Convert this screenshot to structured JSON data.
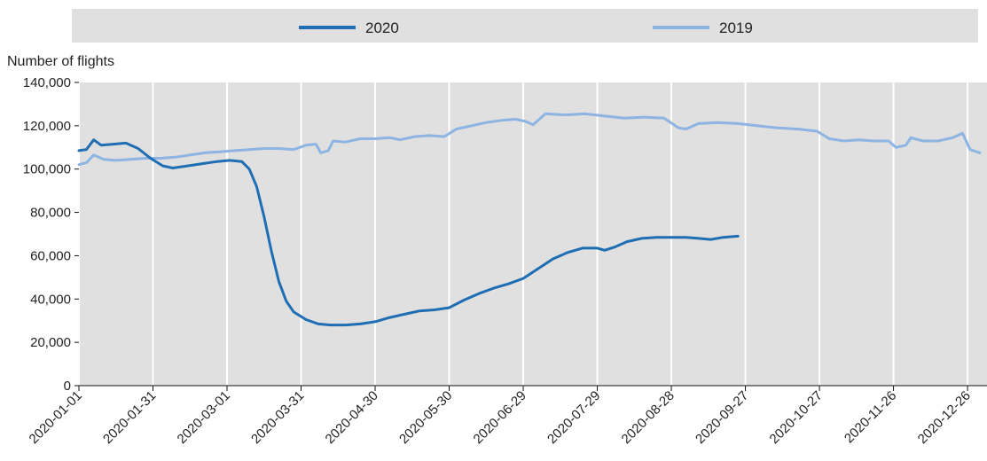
{
  "chart_data": {
    "type": "line",
    "ylabel": "Number of flights",
    "xlabel": "",
    "title": "",
    "ylim": [
      0,
      140000
    ],
    "y_ticks": [
      "0",
      "20,000",
      "40,000",
      "60,000",
      "80,000",
      "100,000",
      "120,000",
      "140,000"
    ],
    "y_tick_values": [
      0,
      20000,
      40000,
      60000,
      80000,
      100000,
      120000,
      140000
    ],
    "x_ticks": [
      "2020-01-01",
      "2020-01-31",
      "2020-03-01",
      "2020-03-31",
      "2020-04-30",
      "2020-05-30",
      "2020-06-29",
      "2020-07-29",
      "2020-08-28",
      "2020-09-27",
      "2020-10-27",
      "2020-11-26",
      "2020-12-26"
    ],
    "x_range": [
      "2020-01-01",
      "2020-12-31"
    ],
    "grid": "vertical",
    "legend_position": "top",
    "series": [
      {
        "name": "2020",
        "color": "#1f6eb4",
        "points": [
          [
            "2020-01-01",
            108500
          ],
          [
            "2020-01-04",
            109000
          ],
          [
            "2020-01-07",
            113500
          ],
          [
            "2020-01-10",
            111000
          ],
          [
            "2020-01-15",
            111500
          ],
          [
            "2020-01-20",
            112000
          ],
          [
            "2020-01-25",
            109500
          ],
          [
            "2020-01-30",
            105000
          ],
          [
            "2020-02-04",
            101500
          ],
          [
            "2020-02-08",
            100500
          ],
          [
            "2020-02-14",
            101500
          ],
          [
            "2020-02-20",
            102500
          ],
          [
            "2020-02-26",
            103500
          ],
          [
            "2020-03-02",
            104000
          ],
          [
            "2020-03-07",
            103500
          ],
          [
            "2020-03-10",
            100000
          ],
          [
            "2020-03-13",
            92000
          ],
          [
            "2020-03-16",
            78000
          ],
          [
            "2020-03-19",
            62000
          ],
          [
            "2020-03-22",
            48000
          ],
          [
            "2020-03-25",
            39000
          ],
          [
            "2020-03-28",
            34000
          ],
          [
            "2020-04-02",
            30500
          ],
          [
            "2020-04-07",
            28500
          ],
          [
            "2020-04-12",
            28000
          ],
          [
            "2020-04-18",
            28000
          ],
          [
            "2020-04-24",
            28500
          ],
          [
            "2020-04-30",
            29500
          ],
          [
            "2020-05-06",
            31500
          ],
          [
            "2020-05-12",
            33000
          ],
          [
            "2020-05-18",
            34500
          ],
          [
            "2020-05-24",
            35000
          ],
          [
            "2020-05-30",
            36000
          ],
          [
            "2020-06-05",
            39500
          ],
          [
            "2020-06-11",
            42500
          ],
          [
            "2020-06-17",
            45000
          ],
          [
            "2020-06-23",
            47000
          ],
          [
            "2020-06-29",
            49500
          ],
          [
            "2020-07-05",
            54000
          ],
          [
            "2020-07-11",
            58500
          ],
          [
            "2020-07-17",
            61500
          ],
          [
            "2020-07-23",
            63500
          ],
          [
            "2020-07-29",
            63500
          ],
          [
            "2020-08-01",
            62500
          ],
          [
            "2020-08-05",
            64000
          ],
          [
            "2020-08-10",
            66500
          ],
          [
            "2020-08-16",
            68000
          ],
          [
            "2020-08-22",
            68500
          ],
          [
            "2020-08-28",
            68500
          ],
          [
            "2020-09-03",
            68500
          ],
          [
            "2020-09-08",
            68000
          ],
          [
            "2020-09-13",
            67500
          ],
          [
            "2020-09-18",
            68500
          ],
          [
            "2020-09-24",
            69000
          ]
        ]
      },
      {
        "name": "2019",
        "color": "#8db4e2",
        "points": [
          [
            "2020-01-01",
            102000
          ],
          [
            "2020-01-04",
            103000
          ],
          [
            "2020-01-07",
            106500
          ],
          [
            "2020-01-11",
            104500
          ],
          [
            "2020-01-16",
            104000
          ],
          [
            "2020-01-22",
            104500
          ],
          [
            "2020-01-28",
            105000
          ],
          [
            "2020-02-03",
            105000
          ],
          [
            "2020-02-09",
            105500
          ],
          [
            "2020-02-15",
            106500
          ],
          [
            "2020-02-21",
            107500
          ],
          [
            "2020-02-27",
            108000
          ],
          [
            "2020-03-04",
            108500
          ],
          [
            "2020-03-10",
            109000
          ],
          [
            "2020-03-16",
            109500
          ],
          [
            "2020-03-22",
            109500
          ],
          [
            "2020-03-28",
            109000
          ],
          [
            "2020-04-02",
            111000
          ],
          [
            "2020-04-06",
            111500
          ],
          [
            "2020-04-08",
            107500
          ],
          [
            "2020-04-11",
            108500
          ],
          [
            "2020-04-13",
            113000
          ],
          [
            "2020-04-18",
            112500
          ],
          [
            "2020-04-24",
            114000
          ],
          [
            "2020-04-30",
            114000
          ],
          [
            "2020-05-06",
            114500
          ],
          [
            "2020-05-10",
            113500
          ],
          [
            "2020-05-16",
            115000
          ],
          [
            "2020-05-22",
            115500
          ],
          [
            "2020-05-28",
            115000
          ],
          [
            "2020-06-02",
            118500
          ],
          [
            "2020-06-08",
            120000
          ],
          [
            "2020-06-14",
            121500
          ],
          [
            "2020-06-20",
            122500
          ],
          [
            "2020-06-26",
            123000
          ],
          [
            "2020-06-30",
            122000
          ],
          [
            "2020-07-03",
            120500
          ],
          [
            "2020-07-08",
            125500
          ],
          [
            "2020-07-16",
            125000
          ],
          [
            "2020-07-24",
            125500
          ],
          [
            "2020-08-01",
            124500
          ],
          [
            "2020-08-09",
            123500
          ],
          [
            "2020-08-17",
            124000
          ],
          [
            "2020-08-25",
            123500
          ],
          [
            "2020-08-31",
            119000
          ],
          [
            "2020-09-03",
            118500
          ],
          [
            "2020-09-08",
            121000
          ],
          [
            "2020-09-16",
            121500
          ],
          [
            "2020-09-24",
            121000
          ],
          [
            "2020-10-02",
            120000
          ],
          [
            "2020-10-10",
            119000
          ],
          [
            "2020-10-18",
            118500
          ],
          [
            "2020-10-26",
            117500
          ],
          [
            "2020-10-31",
            114000
          ],
          [
            "2020-11-06",
            113000
          ],
          [
            "2020-11-12",
            113500
          ],
          [
            "2020-11-18",
            113000
          ],
          [
            "2020-11-24",
            113000
          ],
          [
            "2020-11-27",
            110000
          ],
          [
            "2020-12-01",
            111000
          ],
          [
            "2020-12-03",
            114500
          ],
          [
            "2020-12-08",
            113000
          ],
          [
            "2020-12-14",
            113000
          ],
          [
            "2020-12-20",
            114500
          ],
          [
            "2020-12-24",
            116500
          ],
          [
            "2020-12-27",
            109000
          ],
          [
            "2020-12-31",
            107500
          ]
        ]
      }
    ]
  }
}
